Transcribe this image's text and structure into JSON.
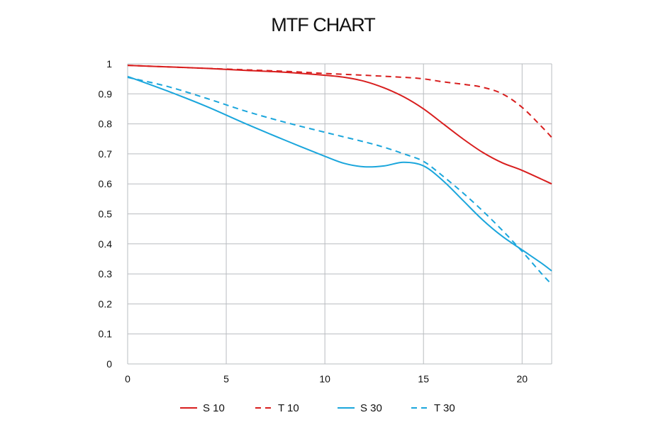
{
  "chart_data": {
    "type": "line",
    "title": "MTF CHART",
    "xlabel": "",
    "ylabel": "",
    "xlim": [
      0,
      21.5
    ],
    "ylim": [
      0,
      1
    ],
    "x_ticks": [
      0,
      5,
      10,
      15,
      20
    ],
    "x_tick_labels": [
      "0",
      "5",
      "10",
      "15",
      "20"
    ],
    "y_ticks": [
      0,
      0.1,
      0.2,
      0.3,
      0.4,
      0.5,
      0.6,
      0.7,
      0.8,
      0.9,
      1
    ],
    "y_tick_labels": [
      "0",
      "0.1",
      "0.2",
      "0.3",
      "0.4",
      "0.5",
      "0.6",
      "0.7",
      "0.8",
      "0.9",
      "1"
    ],
    "grid": true,
    "legend_position": "bottom",
    "series": [
      {
        "name": "S 10",
        "color": "#d81e1e",
        "dash": "solid",
        "points": [
          [
            0,
            0.995
          ],
          [
            2,
            0.99
          ],
          [
            4,
            0.985
          ],
          [
            6,
            0.978
          ],
          [
            8,
            0.972
          ],
          [
            10,
            0.962
          ],
          [
            11,
            0.955
          ],
          [
            12,
            0.942
          ],
          [
            13,
            0.92
          ],
          [
            14,
            0.89
          ],
          [
            15,
            0.85
          ],
          [
            16,
            0.8
          ],
          [
            17,
            0.75
          ],
          [
            18,
            0.705
          ],
          [
            19,
            0.67
          ],
          [
            20,
            0.645
          ],
          [
            21.5,
            0.6
          ]
        ]
      },
      {
        "name": "T 10",
        "color": "#d81e1e",
        "dash": "dashed",
        "points": [
          [
            0,
            0.995
          ],
          [
            4,
            0.985
          ],
          [
            8,
            0.975
          ],
          [
            10,
            0.968
          ],
          [
            12,
            0.962
          ],
          [
            14,
            0.955
          ],
          [
            15,
            0.95
          ],
          [
            16,
            0.94
          ],
          [
            17,
            0.932
          ],
          [
            18,
            0.922
          ],
          [
            19,
            0.9
          ],
          [
            20,
            0.855
          ],
          [
            21,
            0.79
          ],
          [
            21.5,
            0.755
          ]
        ]
      },
      {
        "name": "S 30",
        "color": "#1ba6dc",
        "dash": "solid",
        "points": [
          [
            0,
            0.958
          ],
          [
            2,
            0.91
          ],
          [
            4,
            0.858
          ],
          [
            6,
            0.8
          ],
          [
            8,
            0.745
          ],
          [
            10,
            0.692
          ],
          [
            11,
            0.668
          ],
          [
            12,
            0.657
          ],
          [
            13,
            0.66
          ],
          [
            14,
            0.672
          ],
          [
            15,
            0.66
          ],
          [
            16,
            0.61
          ],
          [
            17,
            0.545
          ],
          [
            18,
            0.48
          ],
          [
            19,
            0.425
          ],
          [
            20,
            0.38
          ],
          [
            21,
            0.335
          ],
          [
            21.5,
            0.31
          ]
        ]
      },
      {
        "name": "T 30",
        "color": "#1ba6dc",
        "dash": "dashed",
        "points": [
          [
            0,
            0.955
          ],
          [
            2,
            0.925
          ],
          [
            4,
            0.885
          ],
          [
            6,
            0.842
          ],
          [
            8,
            0.805
          ],
          [
            10,
            0.772
          ],
          [
            12,
            0.74
          ],
          [
            13,
            0.722
          ],
          [
            14,
            0.7
          ],
          [
            15,
            0.675
          ],
          [
            16,
            0.625
          ],
          [
            17,
            0.57
          ],
          [
            18,
            0.51
          ],
          [
            19,
            0.445
          ],
          [
            20,
            0.375
          ],
          [
            21,
            0.3
          ],
          [
            21.5,
            0.265
          ]
        ]
      }
    ]
  }
}
